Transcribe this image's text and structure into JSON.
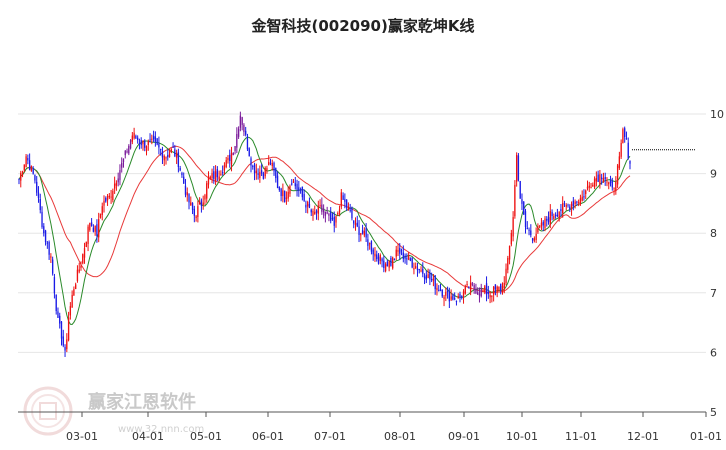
{
  "chart_data": {
    "type": "candlestick",
    "title": "金智科技(002090)赢家乾坤K线",
    "x_ticks": [
      "03-01",
      "04-01",
      "05-01",
      "06-01",
      "07-01",
      "08-01",
      "09-01",
      "10-01",
      "11-01",
      "12-01",
      "01-01"
    ],
    "y_ticks": [
      5,
      6,
      7,
      8,
      9,
      10
    ],
    "ylim": [
      5,
      10.6
    ],
    "grid": "horizontal",
    "colors": {
      "up": "#ee1111",
      "down": "#1a1ae6",
      "neutral": "#7a1a9a",
      "ma_long": "#e83a3a",
      "ma_short": "#2a8a2a",
      "grid": "#e6e6e6",
      "axis": "#555555"
    },
    "price_control_points": [
      [
        0,
        8.9
      ],
      [
        4,
        9.3
      ],
      [
        9,
        8.9
      ],
      [
        14,
        8.0
      ],
      [
        18,
        7.6
      ],
      [
        22,
        6.5
      ],
      [
        24,
        6.3
      ],
      [
        26,
        5.95
      ],
      [
        28,
        6.6
      ],
      [
        31,
        7.1
      ],
      [
        35,
        7.5
      ],
      [
        40,
        8.2
      ],
      [
        44,
        8.0
      ],
      [
        47,
        8.5
      ],
      [
        51,
        8.6
      ],
      [
        56,
        9.0
      ],
      [
        60,
        9.3
      ],
      [
        64,
        9.65
      ],
      [
        70,
        9.5
      ],
      [
        76,
        9.5
      ],
      [
        83,
        9.3
      ],
      [
        87,
        9.4
      ],
      [
        90,
        9.2
      ],
      [
        95,
        8.6
      ],
      [
        99,
        8.3
      ],
      [
        103,
        8.5
      ],
      [
        107,
        8.9
      ],
      [
        112,
        9.0
      ],
      [
        118,
        9.2
      ],
      [
        122,
        9.5
      ],
      [
        125,
        10.0
      ],
      [
        128,
        9.6
      ],
      [
        132,
        9.1
      ],
      [
        138,
        9.0
      ],
      [
        142,
        9.2
      ],
      [
        146,
        8.8
      ],
      [
        150,
        8.6
      ],
      [
        154,
        8.9
      ],
      [
        158,
        8.7
      ],
      [
        162,
        8.5
      ],
      [
        166,
        8.3
      ],
      [
        170,
        8.4
      ],
      [
        174,
        8.3
      ],
      [
        178,
        8.1
      ],
      [
        182,
        8.6
      ],
      [
        186,
        8.4
      ],
      [
        190,
        8.1
      ],
      [
        194,
        8.0
      ],
      [
        198,
        7.8
      ],
      [
        202,
        7.6
      ],
      [
        206,
        7.5
      ],
      [
        210,
        7.5
      ],
      [
        214,
        7.7
      ],
      [
        218,
        7.6
      ],
      [
        222,
        7.5
      ],
      [
        226,
        7.4
      ],
      [
        230,
        7.3
      ],
      [
        236,
        7.1
      ],
      [
        242,
        6.95
      ],
      [
        248,
        6.9
      ],
      [
        254,
        7.1
      ],
      [
        260,
        7.05
      ],
      [
        266,
        7.0
      ],
      [
        270,
        7.05
      ],
      [
        273,
        7.1
      ],
      [
        276,
        7.5
      ],
      [
        279,
        8.3
      ],
      [
        281,
        9.3
      ],
      [
        283,
        8.6
      ],
      [
        286,
        8.1
      ],
      [
        290,
        7.95
      ],
      [
        295,
        8.1
      ],
      [
        300,
        8.3
      ],
      [
        306,
        8.4
      ],
      [
        312,
        8.5
      ],
      [
        318,
        8.6
      ],
      [
        324,
        8.9
      ],
      [
        330,
        9.0
      ],
      [
        335,
        8.7
      ],
      [
        339,
        9.2
      ],
      [
        341,
        9.7
      ],
      [
        343,
        9.5
      ],
      [
        345,
        9.2
      ]
    ]
  }
}
